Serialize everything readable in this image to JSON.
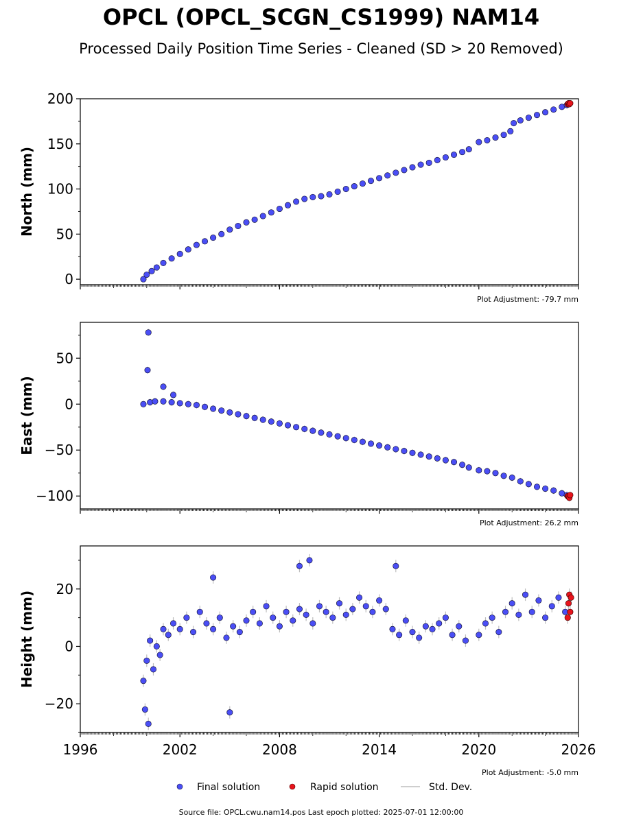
{
  "title": "OPCL (OPCL_SCGN_CS1999) NAM14",
  "subtitle": "Processed Daily Position Time Series - Cleaned (SD > 20 Removed)",
  "legend": {
    "placement": "bottom-center",
    "final": "Final solution",
    "rapid": "Rapid solution",
    "std": "Std. Dev."
  },
  "footer": "Source file: OPCL.cwu.nam14.pos  Last epoch plotted: 2025-07-01 12:00:00",
  "colors": {
    "final_fill": "#4a4ef5",
    "final_edge": "#1a1a40",
    "rapid_fill": "#e8141c",
    "std_dev": "#bdbdbd"
  },
  "chart_data": [
    {
      "type": "scatter",
      "ylabel": "North (mm)",
      "adjustment": "Plot Adjustment: -79.7 mm",
      "xlim": [
        1996,
        2026
      ],
      "ylim": [
        -6,
        200
      ],
      "yticks": [
        "0",
        "50",
        "100",
        "150",
        "200"
      ],
      "ytick_values": [
        0,
        50,
        100,
        150,
        200
      ],
      "series": [
        {
          "name": "Final solution",
          "x": [
            1999.8,
            2000.0,
            2000.3,
            2000.6,
            2001.0,
            2001.5,
            2002.0,
            2002.5,
            2003.0,
            2003.5,
            2004.0,
            2004.5,
            2005.0,
            2005.5,
            2006.0,
            2006.5,
            2007.0,
            2007.5,
            2008.0,
            2008.5,
            2009.0,
            2009.5,
            2010.0,
            2010.5,
            2011.0,
            2011.5,
            2012.0,
            2012.5,
            2013.0,
            2013.5,
            2014.0,
            2014.5,
            2015.0,
            2015.5,
            2016.0,
            2016.5,
            2017.0,
            2017.5,
            2018.0,
            2018.5,
            2019.0,
            2019.4,
            2020.0,
            2020.5,
            2021.0,
            2021.5,
            2021.9,
            2022.1,
            2022.5,
            2023.0,
            2023.5,
            2024.0,
            2024.5,
            2025.0,
            2025.3
          ],
          "y": [
            0,
            5,
            9,
            13,
            18,
            23,
            28,
            33,
            38,
            42,
            46,
            50,
            55,
            59,
            63,
            66,
            70,
            74,
            78,
            82,
            86,
            89,
            91,
            92,
            94,
            97,
            100,
            103,
            106,
            109,
            112,
            115,
            118,
            121,
            124,
            127,
            129,
            132,
            135,
            138,
            141,
            144,
            152,
            154,
            157,
            160,
            164,
            173,
            176,
            179,
            182,
            185,
            188,
            191,
            193
          ]
        },
        {
          "name": "Rapid solution",
          "x": [
            2025.35,
            2025.4,
            2025.45,
            2025.5
          ],
          "y": [
            194,
            195,
            194,
            195
          ]
        }
      ]
    },
    {
      "type": "scatter",
      "ylabel": "East (mm)",
      "adjustment": "Plot Adjustment: 26.2 mm",
      "xlim": [
        1996,
        2026
      ],
      "ylim": [
        -114,
        89
      ],
      "yticks": [
        "50",
        "0",
        "−50",
        "−100"
      ],
      "ytick_values": [
        50,
        0,
        -50,
        -100
      ],
      "series": [
        {
          "name": "Final solution",
          "x": [
            1999.8,
            2000.2,
            2000.5,
            2001.0,
            2001.5,
            2002.0,
            2002.5,
            2003.0,
            2003.5,
            2004.0,
            2004.5,
            2005.0,
            2005.5,
            2006.0,
            2006.5,
            2007.0,
            2007.5,
            2008.0,
            2008.5,
            2009.0,
            2009.5,
            2010.0,
            2010.5,
            2011.0,
            2011.5,
            2012.0,
            2012.5,
            2013.0,
            2013.5,
            2014.0,
            2014.5,
            2015.0,
            2015.5,
            2016.0,
            2016.5,
            2017.0,
            2017.5,
            2018.0,
            2018.5,
            2019.0,
            2019.4,
            2020.0,
            2020.5,
            2021.0,
            2021.5,
            2022.0,
            2022.5,
            2023.0,
            2023.5,
            2024.0,
            2024.5,
            2025.0,
            2025.3,
            2000.1,
            2000.05,
            2001.0,
            2001.6
          ],
          "y": [
            0,
            2,
            3,
            3,
            2,
            1,
            0,
            -1,
            -3,
            -5,
            -7,
            -9,
            -11,
            -13,
            -15,
            -17,
            -19,
            -21,
            -23,
            -25,
            -27,
            -29,
            -31,
            -33,
            -35,
            -37,
            -39,
            -41,
            -43,
            -45,
            -47,
            -49,
            -51,
            -53,
            -55,
            -57,
            -59,
            -61,
            -63,
            -66,
            -69,
            -72,
            -73,
            -75,
            -78,
            -80,
            -84,
            -87,
            -90,
            -92,
            -94,
            -97,
            -99,
            78,
            37,
            19,
            10
          ]
        },
        {
          "name": "Rapid solution",
          "x": [
            2025.35,
            2025.4,
            2025.45,
            2025.5
          ],
          "y": [
            -100,
            -101,
            -102,
            -99
          ]
        }
      ]
    },
    {
      "type": "scatter",
      "ylabel": "Height (mm)",
      "adjustment": "Plot Adjustment: -5.0 mm",
      "xlim": [
        1996,
        2026
      ],
      "ylim": [
        -30,
        35
      ],
      "yticks": [
        "20",
        "0",
        "−20"
      ],
      "ytick_values": [
        20,
        0,
        -20
      ],
      "xticks": [
        "1996",
        "2002",
        "2008",
        "2014",
        "2020",
        "2026"
      ],
      "xtick_values": [
        1996,
        2002,
        2008,
        2014,
        2020,
        2026
      ],
      "series": [
        {
          "name": "Final solution",
          "x": [
            1999.8,
            1999.9,
            2000.0,
            2000.2,
            2000.4,
            2000.6,
            2000.8,
            2001.0,
            2001.3,
            2001.6,
            2002.0,
            2002.4,
            2002.8,
            2003.2,
            2003.6,
            2004.0,
            2004.4,
            2004.8,
            2005.2,
            2005.6,
            2006.0,
            2006.4,
            2006.8,
            2007.2,
            2007.6,
            2008.0,
            2008.4,
            2008.8,
            2009.2,
            2009.6,
            2010.0,
            2010.4,
            2010.8,
            2011.2,
            2011.6,
            2012.0,
            2012.4,
            2012.8,
            2013.2,
            2013.6,
            2014.0,
            2014.4,
            2014.8,
            2015.2,
            2015.6,
            2016.0,
            2016.4,
            2016.8,
            2017.2,
            2017.6,
            2018.0,
            2018.4,
            2018.8,
            2019.2,
            2020.0,
            2020.4,
            2020.8,
            2021.2,
            2021.6,
            2022.0,
            2022.4,
            2022.8,
            2023.2,
            2023.6,
            2024.0,
            2024.4,
            2024.8,
            2025.2,
            2000.1,
            2005.0,
            2004.0,
            2009.2,
            2009.8,
            2015.0
          ],
          "y": [
            -12,
            -22,
            -5,
            2,
            -8,
            0,
            -3,
            6,
            4,
            8,
            6,
            10,
            5,
            12,
            8,
            6,
            10,
            3,
            7,
            5,
            9,
            12,
            8,
            14,
            10,
            7,
            12,
            9,
            13,
            11,
            8,
            14,
            12,
            10,
            15,
            11,
            13,
            17,
            14,
            12,
            16,
            13,
            6,
            4,
            9,
            5,
            3,
            7,
            6,
            8,
            10,
            4,
            7,
            2,
            4,
            8,
            10,
            5,
            12,
            15,
            11,
            18,
            12,
            16,
            10,
            14,
            17,
            12,
            -27,
            -23,
            24,
            28,
            30,
            28
          ]
        },
        {
          "name": "Rapid solution",
          "x": [
            2025.35,
            2025.4,
            2025.45,
            2025.5,
            2025.55
          ],
          "y": [
            10,
            15,
            18,
            12,
            17
          ]
        }
      ]
    }
  ]
}
